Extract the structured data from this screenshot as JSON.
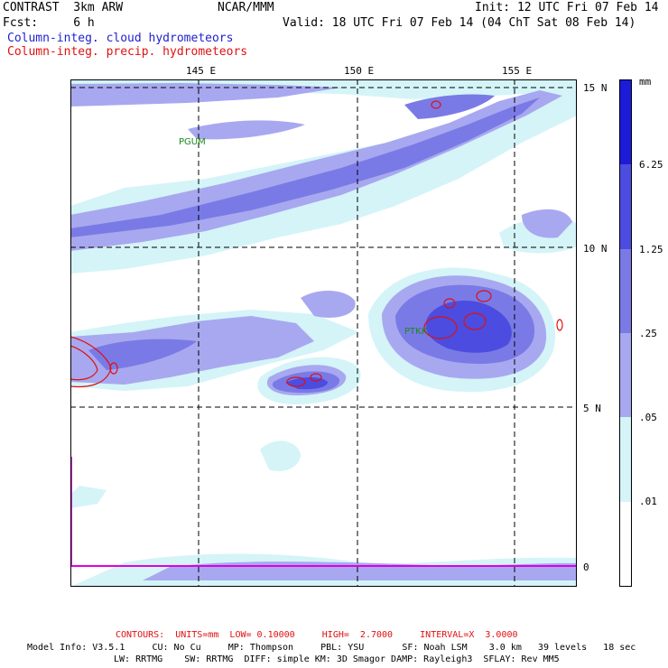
{
  "header": {
    "model": "CONTRAST  3km ARW",
    "org": "NCAR/MMM",
    "init": "Init: 12 UTC Fri 07 Feb 14",
    "fcst_label": "Fcst:     6 h",
    "valid": "Valid: 18 UTC Fri 07 Feb 14 (04 ChT Sat 08 Feb 14)",
    "field1": "Column-integ. cloud hydrometeors",
    "field2": "Column-integ. precip. hydrometeors"
  },
  "map": {
    "lon_labels": [
      "145 E",
      "150 E",
      "155 E"
    ],
    "lat_labels": [
      "15 N",
      "10 N",
      "5 N",
      "0"
    ],
    "stations": [
      "PGUM",
      "PTKK"
    ]
  },
  "colorbar": {
    "unit": "mm",
    "labels": [
      "6.25",
      "1.25",
      ".25",
      ".05",
      ".01"
    ],
    "colors": [
      "#1c1cd8",
      "#4c4ce0",
      "#7a7ae6",
      "#a8a8f0",
      "#d4f4f8",
      "#ffffff"
    ]
  },
  "footer": {
    "contours_line": "CONTOURS:  UNITS=mm  LOW= 0.10000     HIGH=  2.7000     INTERVAL=X  3.0000",
    "model_info_1": "Model Info: V3.5.1     CU: No Cu     MP: Thompson     PBL: YSU       SF: Noah LSM    3.0 km   39 levels   18 sec",
    "model_info_2": "LW: RRTMG    SW: RRTMG  DIFF: simple KM: 3D Smagor DAMP: Rayleigh3  SFLAY: Rev MM5"
  }
}
